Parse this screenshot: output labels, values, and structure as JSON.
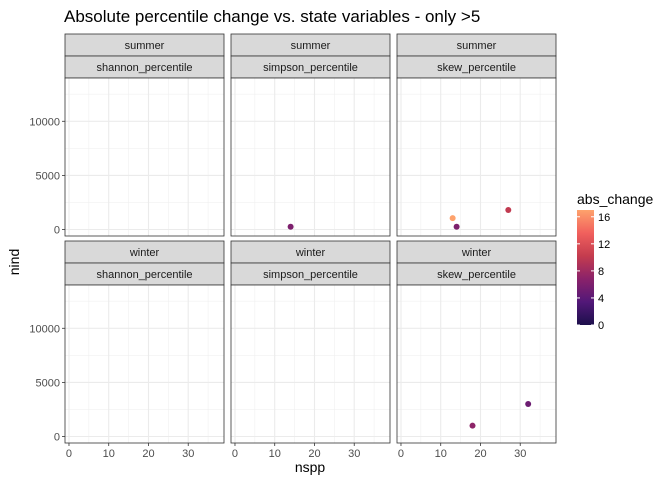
{
  "chart_data": {
    "type": "scatter",
    "title": "Absolute percentile change vs. state variables - only >5",
    "xlabel": "nspp",
    "ylabel": "nind",
    "xlim": [
      -1,
      39
    ],
    "ylim": [
      -600,
      14000
    ],
    "x_ticks": [
      0,
      10,
      20,
      30
    ],
    "x_tick_labels": [
      "0",
      "10",
      "20",
      "30"
    ],
    "y_ticks": [
      0,
      5000,
      10000
    ],
    "y_tick_labels": [
      "0",
      "5000",
      "10000"
    ],
    "grid": true,
    "facet_rows": [
      "summer",
      "winter"
    ],
    "facet_cols": [
      "shannon_percentile",
      "simpson_percentile",
      "skew_percentile"
    ],
    "legend": {
      "title": "abs_change",
      "placement": "right",
      "min": 0,
      "max": 17,
      "ticks": [
        0,
        4,
        8,
        12,
        16
      ],
      "tick_labels": [
        "0",
        "4",
        "8",
        "12",
        "16"
      ],
      "colors": [
        "#1c0f4b",
        "#521878",
        "#8a226a",
        "#c43c4e",
        "#f1605d",
        "#fea26c"
      ]
    },
    "points": [
      {
        "season": "summer",
        "variable": "simpson_percentile",
        "x": 14,
        "y": 250,
        "abs_change": 6
      },
      {
        "season": "summer",
        "variable": "skew_percentile",
        "x": 13,
        "y": 1050,
        "abs_change": 17
      },
      {
        "season": "summer",
        "variable": "skew_percentile",
        "x": 14,
        "y": 250,
        "abs_change": 6
      },
      {
        "season": "summer",
        "variable": "skew_percentile",
        "x": 27,
        "y": 1800,
        "abs_change": 10
      },
      {
        "season": "winter",
        "variable": "skew_percentile",
        "x": 18,
        "y": 1000,
        "abs_change": 7
      },
      {
        "season": "winter",
        "variable": "skew_percentile",
        "x": 32,
        "y": 3000,
        "abs_change": 5
      }
    ]
  }
}
